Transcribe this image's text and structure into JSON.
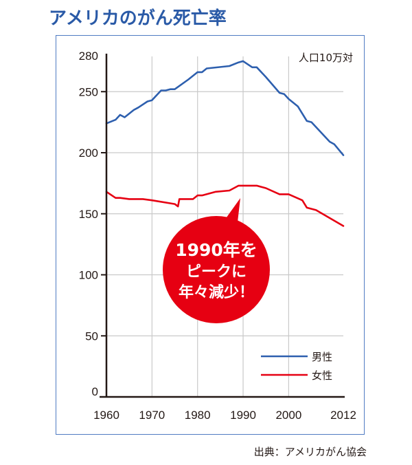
{
  "title": "アメリカのがん死亡率",
  "source": "出典：アメリカがん協会",
  "colors": {
    "title": "#2a5aa7",
    "frame": "#4f7bc2",
    "male": "#2d5fae",
    "female": "#e60012",
    "bubble": "#e60012",
    "axis": "#231815",
    "grid": "#c9c9c9"
  },
  "callout": {
    "lines": [
      "1990年を",
      "ピークに",
      "年々減少！"
    ]
  },
  "chart_data": {
    "type": "line",
    "title": "アメリカのがん死亡率",
    "xlabel": "",
    "ylabel": "人口10万対",
    "unit_label": "人口10万対",
    "xlim": [
      1960,
      2012
    ],
    "ylim": [
      0,
      280
    ],
    "yticks": [
      0,
      50,
      100,
      150,
      200,
      250,
      280
    ],
    "xticks": [
      1960,
      1970,
      1980,
      1990,
      2000,
      2012
    ],
    "grid": true,
    "legend_position": "lower right",
    "series": [
      {
        "name": "男性",
        "color": "#2d5fae",
        "x": [
          1960,
          1962,
          1963,
          1964,
          1966,
          1967,
          1969,
          1970,
          1972,
          1973,
          1974,
          1975,
          1978,
          1980,
          1981,
          1982,
          1987,
          1989,
          1990,
          1992,
          1993,
          1995,
          1998,
          1999,
          2000,
          2002,
          2004,
          2005,
          2009,
          2010,
          2012
        ],
        "values": [
          224,
          227,
          231,
          229,
          235,
          237,
          242,
          243,
          251,
          251,
          252,
          252,
          260,
          266,
          266,
          269,
          271,
          274,
          275,
          270,
          270,
          262,
          249,
          248,
          244,
          238,
          226,
          225,
          209,
          207,
          198
        ]
      },
      {
        "name": "女性",
        "color": "#e60012",
        "x": [
          1960,
          1962,
          1963,
          1965,
          1968,
          1970,
          1975,
          1975.7,
          1976,
          1979,
          1980,
          1981,
          1984,
          1987,
          1989,
          1993,
          1995,
          1998,
          2000,
          2003,
          2004,
          2006,
          2012
        ],
        "values": [
          168,
          163,
          163,
          162,
          162,
          161,
          158,
          156,
          162,
          162,
          165,
          165,
          168,
          169,
          173,
          173,
          171,
          166,
          166,
          161,
          155,
          153,
          140
        ]
      }
    ]
  }
}
